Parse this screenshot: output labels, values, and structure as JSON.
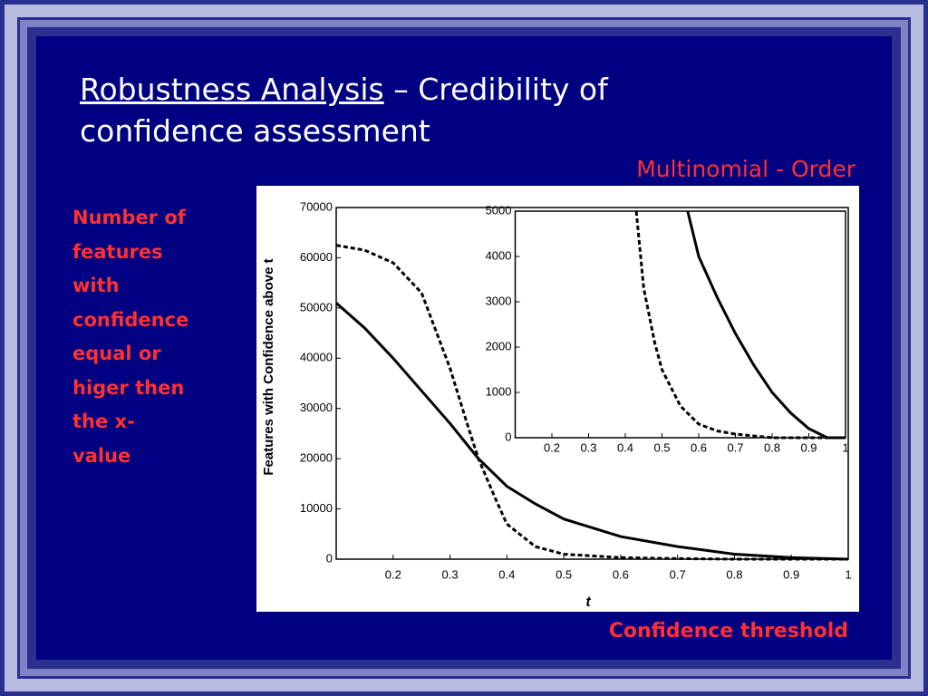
{
  "slide": {
    "title_underlined": "Robustness Analysis",
    "title_rest": "– Credibility of confidence assessment",
    "chart_heading": "Multinomial - Order",
    "side_note": [
      "Number of",
      "features",
      "with",
      "confidence",
      "equal or",
      "higer then",
      "the x-",
      "value"
    ],
    "caption": "Confidence threshold"
  },
  "chart_data": [
    {
      "type": "line",
      "x_label": "t",
      "y_label": "Features with Confidence above t",
      "xlim": [
        0.1,
        1
      ],
      "xticks": [
        0.2,
        0.3,
        0.4,
        0.5,
        0.6,
        0.7,
        0.8,
        0.9,
        1
      ],
      "ylim": [
        0,
        70000
      ],
      "yticks": [
        0,
        10000,
        20000,
        30000,
        40000,
        50000,
        60000,
        70000
      ],
      "series": [
        {
          "color": "#000000",
          "line_style": "solid",
          "x": [
            0.1,
            0.15,
            0.2,
            0.25,
            0.3,
            0.35,
            0.4,
            0.45,
            0.5,
            0.6,
            0.7,
            0.8,
            0.9,
            1
          ],
          "values": [
            51000,
            46000,
            40000,
            33500,
            27000,
            20000,
            14500,
            11000,
            8000,
            4500,
            2500,
            1000,
            300,
            0
          ]
        },
        {
          "color": "#000000",
          "line_style": "dashed",
          "x": [
            0.1,
            0.15,
            0.2,
            0.25,
            0.3,
            0.33,
            0.35,
            0.38,
            0.4,
            0.45,
            0.5,
            0.6,
            0.7,
            0.8,
            0.9,
            1
          ],
          "values": [
            62500,
            61500,
            59000,
            53000,
            38000,
            27000,
            20000,
            12000,
            7000,
            2500,
            1000,
            300,
            100,
            0,
            0,
            0
          ]
        }
      ]
    },
    {
      "type": "line",
      "xlim": [
        0.1,
        1
      ],
      "xticks": [
        0.2,
        0.3,
        0.4,
        0.5,
        0.6,
        0.7,
        0.8,
        0.9,
        1
      ],
      "ylim": [
        0,
        5000
      ],
      "yticks": [
        0,
        1000,
        2000,
        3000,
        4000,
        5000
      ],
      "series": [
        {
          "color": "#000000",
          "line_style": "solid",
          "x": [
            0.57,
            0.6,
            0.65,
            0.7,
            0.75,
            0.8,
            0.85,
            0.9,
            0.95,
            1
          ],
          "values": [
            5000,
            4000,
            3100,
            2300,
            1600,
            1000,
            550,
            200,
            0,
            0
          ]
        },
        {
          "color": "#000000",
          "line_style": "dashed",
          "x": [
            0.43,
            0.45,
            0.48,
            0.5,
            0.55,
            0.6,
            0.65,
            0.7,
            0.8,
            0.9,
            1
          ],
          "values": [
            5000,
            3300,
            2100,
            1500,
            700,
            300,
            150,
            80,
            0,
            0,
            0
          ]
        }
      ]
    }
  ]
}
